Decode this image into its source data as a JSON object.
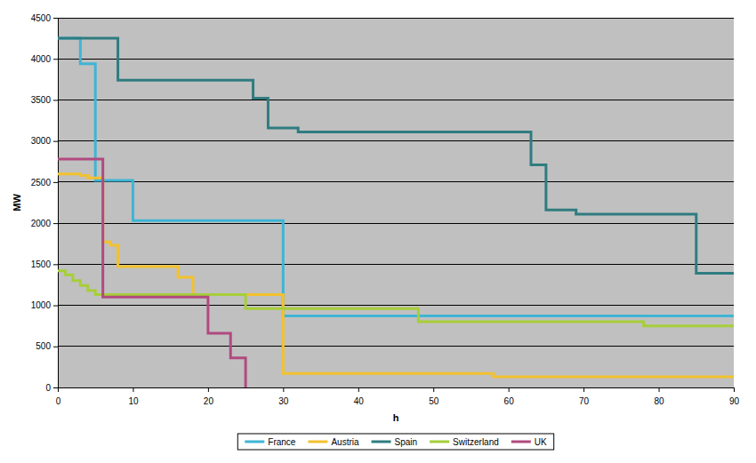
{
  "chart_data": {
    "type": "line",
    "x_label": "h",
    "y_label": "MW",
    "xlim": [
      0,
      90
    ],
    "ylim": [
      0,
      4500
    ],
    "xticks": [
      0,
      10,
      20,
      30,
      40,
      50,
      60,
      70,
      80,
      90
    ],
    "yticks": [
      0,
      500,
      1000,
      1500,
      2000,
      2500,
      3000,
      3500,
      4000,
      4500
    ],
    "grid": true,
    "legend": "bottom",
    "line_style": "step",
    "series": [
      {
        "name": "France",
        "color": "#3fb5d4",
        "x": [
          0,
          3,
          5,
          10,
          30,
          90
        ],
        "values": [
          4250,
          3940,
          2520,
          2030,
          870,
          870
        ]
      },
      {
        "name": "Austria",
        "color": "#f2c12e",
        "x": [
          0,
          3,
          4,
          6,
          7,
          8,
          16,
          18,
          30,
          58,
          90
        ],
        "values": [
          2600,
          2580,
          2550,
          1770,
          1730,
          1470,
          1340,
          1130,
          170,
          130,
          130
        ]
      },
      {
        "name": "Spain",
        "color": "#2f7c80",
        "x": [
          0,
          8,
          26,
          28,
          32,
          63,
          65,
          69,
          85,
          90
        ],
        "values": [
          4250,
          3740,
          3520,
          3160,
          3110,
          2710,
          2160,
          2110,
          1390,
          1390
        ]
      },
      {
        "name": "Switzerland",
        "color": "#a6ce39",
        "x": [
          0,
          1,
          2,
          3,
          4,
          5,
          25,
          48,
          78,
          90
        ],
        "values": [
          1420,
          1370,
          1300,
          1240,
          1180,
          1130,
          960,
          800,
          750,
          750
        ]
      },
      {
        "name": "UK",
        "color": "#b04a7f",
        "x": [
          0,
          6,
          20,
          23,
          25
        ],
        "values": [
          2780,
          1100,
          660,
          360,
          0
        ]
      }
    ]
  }
}
